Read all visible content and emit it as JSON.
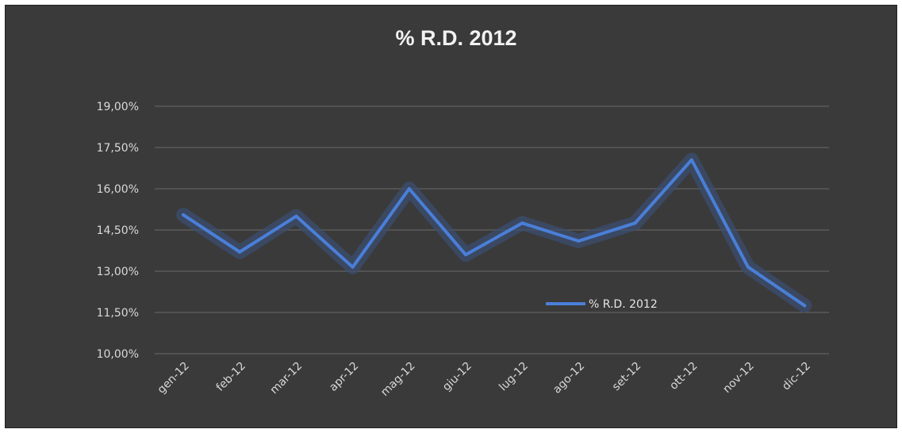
{
  "chart_data": {
    "type": "line",
    "title": "% R.D. 2012",
    "categories": [
      "gen-12",
      "feb-12",
      "mar-12",
      "apr-12",
      "mag-12",
      "giu-12",
      "lug-12",
      "ago-12",
      "set-12",
      "ott-12",
      "nov-12",
      "dic-12"
    ],
    "series": [
      {
        "name": "% R.D. 2012",
        "values": [
          15.05,
          13.7,
          15.0,
          13.15,
          16.0,
          13.6,
          14.75,
          14.1,
          14.75,
          17.05,
          13.15,
          11.75
        ]
      }
    ],
    "yticks": [
      "19,00%",
      "17,50%",
      "16,00%",
      "14,50%",
      "13,00%",
      "11,50%",
      "10,00%"
    ],
    "ytick_values": [
      19,
      17.5,
      16,
      14.5,
      13,
      11.5,
      10
    ],
    "ylim": [
      10,
      19
    ],
    "grid": true,
    "legend": "inside-right",
    "colors": {
      "background": "#3a3a3a",
      "line": "#4a7fd8",
      "glow": "#3c4f72",
      "grid": "#6a6a6a",
      "text": "#d9d9d9"
    }
  }
}
